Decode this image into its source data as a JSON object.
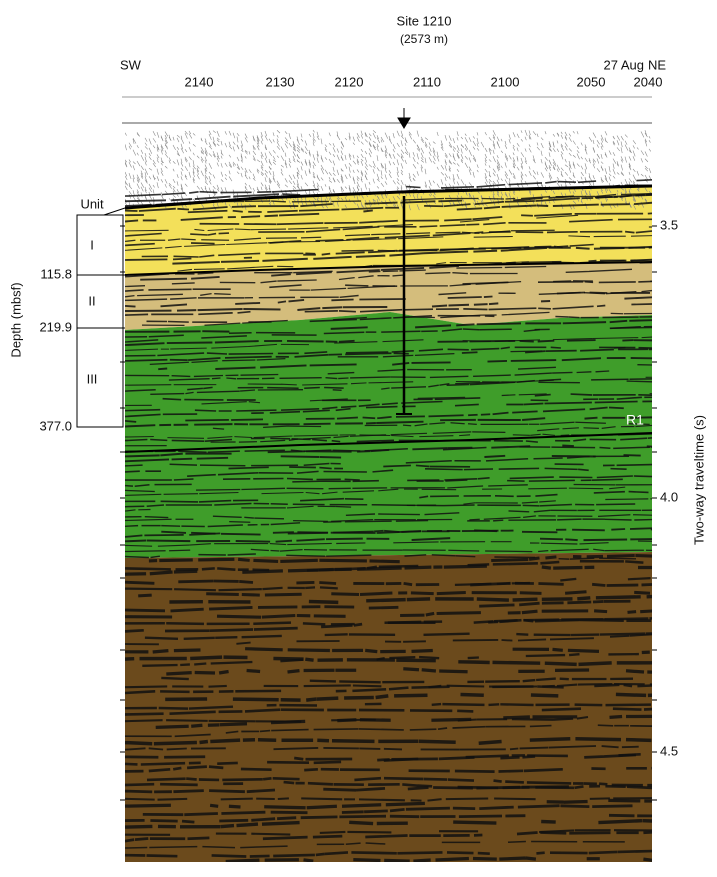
{
  "header": {
    "title": "Site 1210",
    "subtitle": "(2573 m)",
    "left": "SW",
    "right": "NE",
    "date": "27 Aug"
  },
  "top_axis": {
    "labels": [
      "2140",
      "2130",
      "2120",
      "2110",
      "2100",
      "2050",
      "2040"
    ]
  },
  "right_axis": {
    "title": "Two-way traveltime (s)",
    "labels": [
      "3.5",
      "4.0",
      "4.5"
    ]
  },
  "units": {
    "title": "Unit",
    "names": [
      "I",
      "II",
      "III"
    ],
    "depths": [
      "115.8",
      "219.9",
      "377.0"
    ],
    "depth_title": "Depth (mbsf)"
  },
  "reflector": "R1"
}
